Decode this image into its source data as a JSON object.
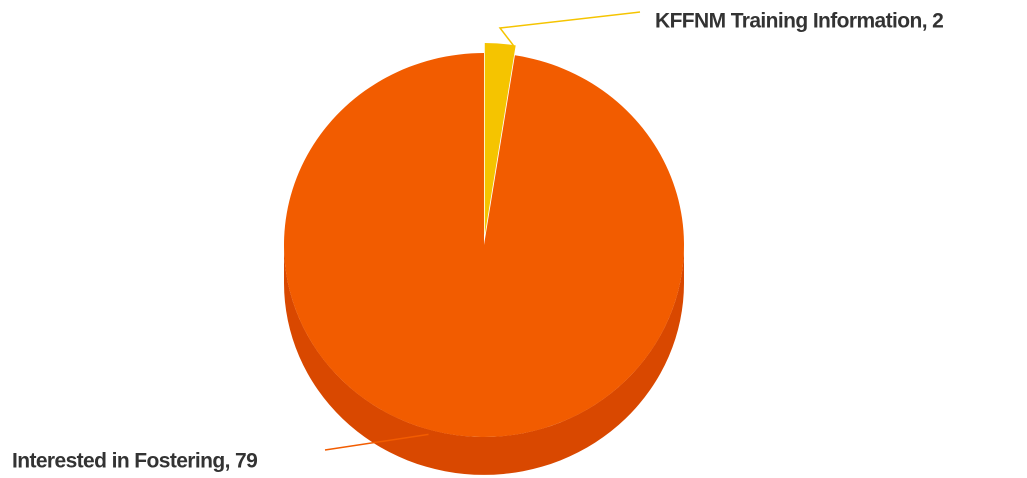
{
  "chart_data": {
    "type": "pie",
    "values": [
      2,
      79
    ],
    "value_labels": [
      "KFFNM Training Information, 2",
      "Interested in Fostering, 79"
    ],
    "colors": [
      "#f5c400",
      "#f25c00"
    ],
    "side_colors": [
      "#d9a800",
      "#d94800"
    ],
    "threeD": true
  }
}
